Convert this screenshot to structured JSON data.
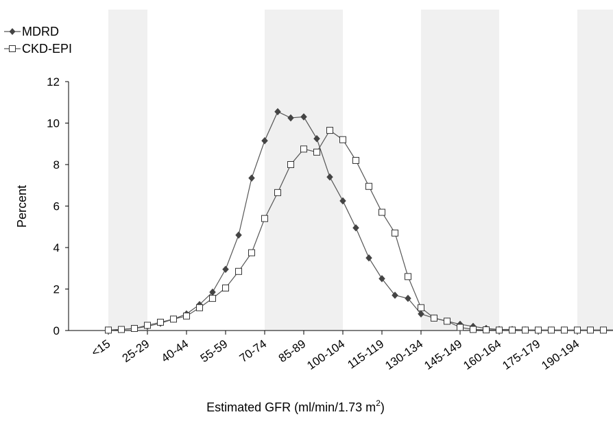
{
  "chart_data": {
    "type": "line",
    "xlabel": "Estimated GFR (ml/min/1.73 m",
    "xlabel_sup": "2",
    "xlabel_close": ")",
    "ylabel": "Percent",
    "ylim": [
      0,
      12
    ],
    "yticks": [
      0,
      2,
      4,
      6,
      8,
      10,
      12
    ],
    "x_tick_labels": [
      "<15",
      "25-29",
      "40-44",
      "55-59",
      "70-74",
      "85-89",
      "100-104",
      "115-119",
      "130-134",
      "145-149",
      "160-164",
      "175-179",
      "190-194"
    ],
    "shaded_bands": [
      {
        "from_index": 0,
        "to_index": 3
      },
      {
        "from_index": 12,
        "to_index": 18
      },
      {
        "from_index": 24,
        "to_index": 30
      },
      {
        "from_index": 36,
        "to_index": 42
      }
    ],
    "legend_position": "top-left",
    "series": [
      {
        "name": "MDRD",
        "marker": "diamond-filled",
        "color": "#555555",
        "values": [
          0.02,
          0.05,
          0.1,
          0.2,
          0.35,
          0.55,
          0.8,
          1.25,
          1.85,
          2.95,
          4.6,
          7.35,
          9.15,
          10.55,
          10.25,
          10.3,
          9.25,
          7.4,
          6.25,
          4.95,
          3.5,
          2.5,
          1.7,
          1.55,
          0.8,
          0.6,
          0.45,
          0.3,
          0.2,
          0.1,
          0.05,
          0.05,
          0.03,
          0.02,
          0.02,
          0.02,
          0.02,
          0.02,
          0.02,
          0.02,
          0.02
        ]
      },
      {
        "name": "CKD-EPI",
        "marker": "square-open",
        "color": "#555555",
        "values": [
          0.02,
          0.05,
          0.1,
          0.25,
          0.4,
          0.55,
          0.7,
          1.1,
          1.55,
          2.05,
          2.85,
          3.75,
          5.4,
          6.65,
          8.0,
          8.75,
          8.6,
          9.65,
          9.2,
          8.2,
          6.95,
          5.7,
          4.7,
          2.6,
          1.1,
          0.6,
          0.45,
          0.15,
          0.05,
          0.03,
          0.02,
          0.02,
          0.02,
          0.02,
          0.02,
          0.02,
          0.02,
          0.02,
          0.02,
          0.02,
          0.02
        ]
      }
    ]
  }
}
